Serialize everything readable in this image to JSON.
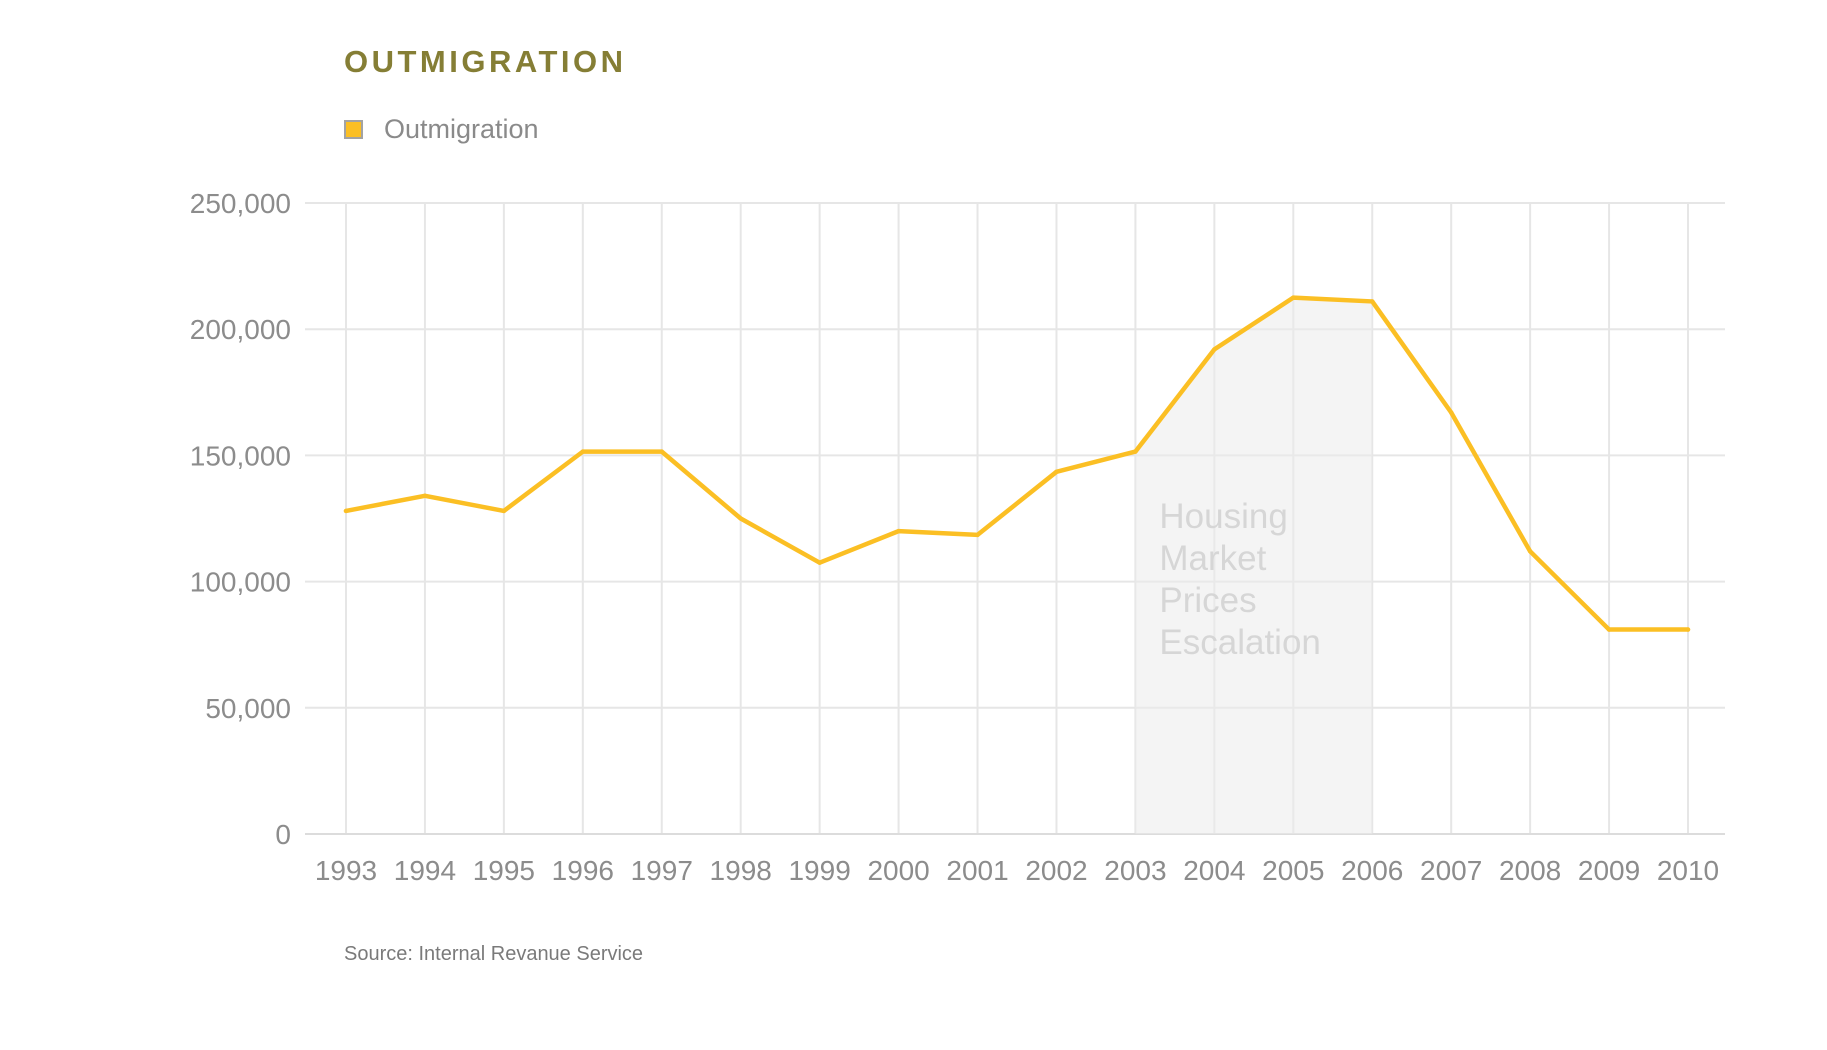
{
  "chart_data": {
    "type": "line",
    "title": "OUTMIGRATION",
    "categories": [
      "1993",
      "1994",
      "1995",
      "1996",
      "1997",
      "1998",
      "1999",
      "2000",
      "2001",
      "2002",
      "2003",
      "2004",
      "2005",
      "2006",
      "2007",
      "2008",
      "2009",
      "2010"
    ],
    "series": [
      {
        "name": "Outmigration",
        "color": "#fbbf24",
        "values": [
          128000,
          134000,
          128000,
          151500,
          151500,
          125000,
          107500,
          120000,
          118500,
          143500,
          151500,
          192000,
          212500,
          211000,
          167000,
          112000,
          81000,
          81000
        ]
      }
    ],
    "yticks": [
      "0",
      "50,000",
      "100,000",
      "150,000",
      "200,000",
      "250,000"
    ],
    "ylim": [
      0,
      250000
    ],
    "grid": true,
    "legend_position": "top-left",
    "annotation": {
      "lines": [
        "Housing",
        "Market",
        "Prices",
        "Escalation"
      ],
      "x_start": "2003",
      "x_end": "2006"
    },
    "source": "Source: Internal Revanue Service"
  }
}
